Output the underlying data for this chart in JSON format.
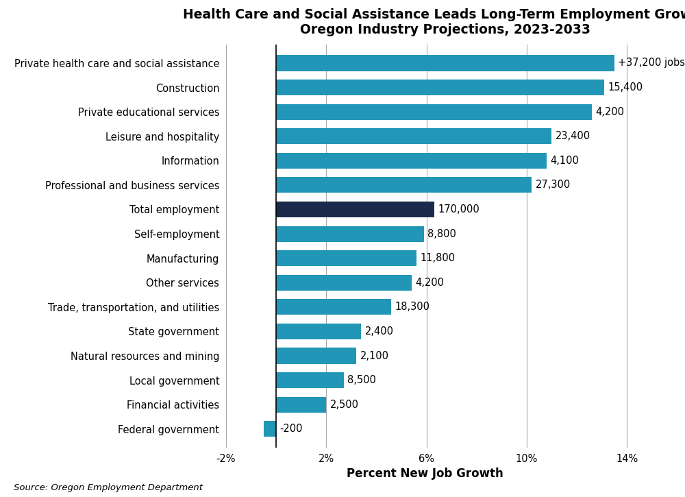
{
  "title_line1": "Health Care and Social Assistance Leads Long-Term Employment Growth",
  "title_line2": "Oregon Industry Projections, 2023-2033",
  "xlabel": "Percent New Job Growth",
  "source": "Source: Oregon Employment Department",
  "categories": [
    "Private health care and social assistance",
    "Construction",
    "Private educational services",
    "Leisure and hospitality",
    "Information",
    "Professional and business services",
    "Total employment",
    "Self-employment",
    "Manufacturing",
    "Other services",
    "Trade, transportation, and utilities",
    "State government",
    "Natural resources and mining",
    "Local government",
    "Financial activities",
    "Federal government"
  ],
  "values": [
    13.5,
    13.1,
    12.6,
    11.0,
    10.8,
    10.2,
    6.3,
    5.9,
    5.6,
    5.4,
    4.6,
    3.4,
    3.2,
    2.7,
    2.0,
    -0.5
  ],
  "labels": [
    "+37,200 jobs",
    "15,400",
    "4,200",
    "23,400",
    "4,100",
    "27,300",
    "170,000",
    "8,800",
    "11,800",
    "4,200",
    "18,300",
    "2,400",
    "2,100",
    "8,500",
    "2,500",
    "-200"
  ],
  "bar_colors": [
    "#2196B6",
    "#2196B6",
    "#2196B6",
    "#2196B6",
    "#2196B6",
    "#2196B6",
    "#1B2A4A",
    "#2196B6",
    "#2196B6",
    "#2196B6",
    "#2196B6",
    "#2196B6",
    "#2196B6",
    "#2196B6",
    "#2196B6",
    "#2196B6"
  ],
  "xlim": [
    -2,
    15.5
  ],
  "xticks": [
    -2,
    2,
    6,
    10,
    14
  ],
  "xtick_labels": [
    "-2%",
    "2%",
    "6%",
    "10%",
    "14%"
  ],
  "gridline_color": "#AAAAAA",
  "background_color": "#FFFFFF",
  "bar_height": 0.65,
  "title_fontsize": 13.5,
  "label_fontsize": 10.5,
  "tick_fontsize": 10.5,
  "xlabel_fontsize": 12,
  "source_fontsize": 9.5,
  "vline_x": 0
}
